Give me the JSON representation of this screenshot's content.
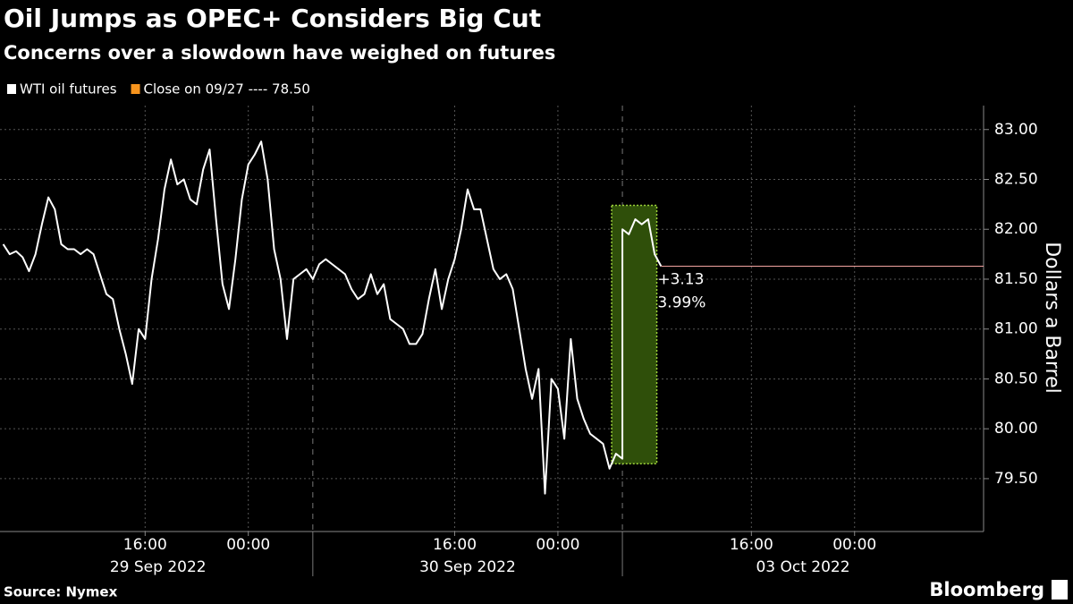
{
  "chart_data": {
    "type": "line",
    "title": "Oil Jumps as OPEC+ Considers Big Cut",
    "subtitle": "Concerns over a slowdown have weighed on futures",
    "y_label": "Dollars a Barrel",
    "source": "Source: Nymex",
    "brand": "Bloomberg",
    "legend": [
      {
        "name": "WTI oil futures",
        "color": "#ffffff"
      },
      {
        "name": "Close on 09/27 ---- 78.50",
        "color": "#f7941d"
      }
    ],
    "annotations": [
      "+3.13",
      "3.99%"
    ],
    "annotation_color": "#f7941d",
    "last_line_color": "#f2a3a0",
    "grid": true,
    "x": [
      "2022-09-29 05:00",
      "2022-09-29 05:30",
      "2022-09-29 06:00",
      "2022-09-29 06:30",
      "2022-09-29 07:00",
      "2022-09-29 07:30",
      "2022-09-29 08:00",
      "2022-09-29 08:30",
      "2022-09-29 09:00",
      "2022-09-29 09:30",
      "2022-09-29 10:00",
      "2022-09-29 10:30",
      "2022-09-29 11:00",
      "2022-09-29 11:30",
      "2022-09-29 12:00",
      "2022-09-29 12:30",
      "2022-09-29 13:00",
      "2022-09-29 13:30",
      "2022-09-29 14:00",
      "2022-09-29 14:30",
      "2022-09-29 15:00",
      "2022-09-29 15:30",
      "2022-09-29 16:00",
      "2022-09-29 16:30",
      "2022-09-29 17:00",
      "2022-09-29 17:30",
      "2022-09-29 18:00",
      "2022-09-29 18:30",
      "2022-09-29 19:00",
      "2022-09-29 19:30",
      "2022-09-29 20:00",
      "2022-09-29 20:30",
      "2022-09-29 21:00",
      "2022-09-29 21:30",
      "2022-09-29 22:00",
      "2022-09-29 22:30",
      "2022-09-29 23:00",
      "2022-09-29 23:30",
      "2022-09-30 00:00",
      "2022-09-30 00:30",
      "2022-09-30 01:00",
      "2022-09-30 01:30",
      "2022-09-30 02:00",
      "2022-09-30 02:30",
      "2022-09-30 03:00",
      "2022-09-30 03:30",
      "2022-09-30 04:00",
      "2022-09-30 04:30",
      "2022-09-30 05:00",
      "2022-09-30 05:30",
      "2022-09-30 06:00",
      "2022-09-30 06:30",
      "2022-09-30 07:00",
      "2022-09-30 07:30",
      "2022-09-30 08:00",
      "2022-09-30 08:30",
      "2022-09-30 09:00",
      "2022-09-30 09:30",
      "2022-09-30 10:00",
      "2022-09-30 10:30",
      "2022-09-30 11:00",
      "2022-09-30 11:30",
      "2022-09-30 12:00",
      "2022-09-30 12:30",
      "2022-09-30 13:00",
      "2022-09-30 13:30",
      "2022-09-30 14:00",
      "2022-09-30 14:30",
      "2022-09-30 15:00",
      "2022-09-30 15:30",
      "2022-09-30 16:00",
      "2022-09-30 16:30",
      "2022-09-30 17:00",
      "2022-09-30 17:30",
      "2022-09-30 18:00",
      "2022-09-30 18:30",
      "2022-09-30 19:00",
      "2022-09-30 19:30",
      "2022-09-30 20:00",
      "2022-09-30 20:30",
      "2022-09-30 21:00",
      "2022-09-30 21:30",
      "2022-09-30 22:00",
      "2022-09-30 22:30",
      "2022-09-30 23:00",
      "2022-09-30 23:30",
      "2022-10-01 00:00",
      "2022-10-01 00:30",
      "2022-10-01 01:00",
      "2022-10-01 01:30",
      "2022-10-01 02:00",
      "2022-10-01 02:30",
      "2022-10-01 03:00",
      "2022-10-01 03:30",
      "2022-10-01 04:00",
      "2022-10-01 04:30",
      "2022-10-01 05:00",
      "2022-10-03 06:00",
      "2022-10-03 06:30",
      "2022-10-03 07:00",
      "2022-10-03 07:30",
      "2022-10-03 08:00",
      "2022-10-03 08:30",
      "2022-10-03 09:00"
    ],
    "series": [
      {
        "name": "WTI oil futures",
        "color": "#ffffff",
        "values": [
          81.85,
          81.75,
          81.78,
          81.72,
          81.58,
          81.75,
          82.05,
          82.32,
          82.2,
          81.85,
          81.8,
          81.8,
          81.75,
          81.8,
          81.75,
          81.55,
          81.35,
          81.3,
          81.0,
          80.75,
          80.45,
          81.0,
          80.9,
          81.5,
          81.9,
          82.4,
          82.7,
          82.45,
          82.5,
          82.3,
          82.25,
          82.6,
          82.8,
          82.1,
          81.45,
          81.2,
          81.7,
          82.3,
          82.65,
          82.75,
          82.88,
          82.5,
          81.8,
          81.5,
          80.9,
          81.5,
          81.55,
          81.6,
          81.5,
          81.65,
          81.7,
          81.65,
          81.6,
          81.55,
          81.4,
          81.3,
          81.35,
          81.55,
          81.35,
          81.45,
          81.1,
          81.05,
          81.0,
          80.85,
          80.85,
          80.95,
          81.3,
          81.6,
          81.2,
          81.5,
          81.7,
          82.0,
          82.4,
          82.2,
          82.2,
          81.9,
          81.6,
          81.5,
          81.55,
          81.4,
          81.0,
          80.6,
          80.3,
          80.6,
          79.35,
          80.5,
          80.4,
          79.9,
          80.9,
          80.3,
          80.1,
          79.95,
          79.9,
          79.85,
          79.6,
          79.75,
          79.7,
          82.0,
          81.95,
          82.1,
          82.05,
          82.1,
          81.75,
          81.63
        ]
      }
    ],
    "highlight": {
      "x": [
        "2022-10-01 04:10",
        "2022-10-03 08:40"
      ],
      "y": [
        79.65,
        82.24
      ],
      "color": "#2f4f0a",
      "border": "#9ed43a"
    },
    "xlim": [
      "2022-09-29 04:45",
      "2022-10-04 10:00"
    ],
    "xticks": [
      {
        "value": "2022-09-29 16:00",
        "label": "16:00"
      },
      {
        "value": "2022-09-30 00:00",
        "label": "00:00"
      },
      {
        "value": "2022-09-30 16:00",
        "label": "16:00"
      },
      {
        "value": "2022-10-01 00:00",
        "label": "00:00"
      },
      {
        "value": "2022-10-03 16:00",
        "label": "16:00"
      },
      {
        "value": "2022-10-04 00:00",
        "label": "00:00"
      }
    ],
    "date_labels": [
      {
        "value": "2022-09-29 05:00",
        "label": "29 Sep 2022"
      },
      {
        "value": "2022-09-30 05:00",
        "label": "30 Sep 2022"
      },
      {
        "value": "2022-10-03 06:00",
        "label": "03 Oct 2022"
      }
    ],
    "ylim": [
      78.97,
      83.24
    ],
    "yticks": [
      {
        "value": 79.5,
        "label": "79.50"
      },
      {
        "value": 80,
        "label": "80.00"
      },
      {
        "value": 80.5,
        "label": "80.50"
      },
      {
        "value": 81,
        "label": "81.00"
      },
      {
        "value": 81.5,
        "label": "81.50"
      },
      {
        "value": 82,
        "label": "82.00"
      },
      {
        "value": 82.5,
        "label": "82.50"
      },
      {
        "value": 83,
        "label": "83.00"
      }
    ]
  }
}
